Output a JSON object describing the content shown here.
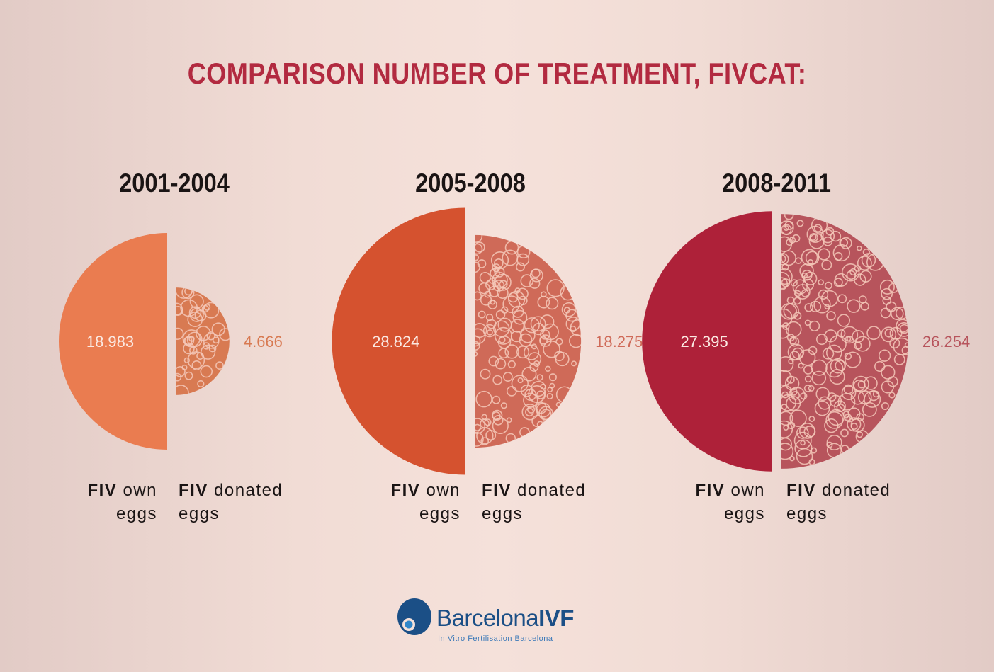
{
  "chart_data": {
    "type": "pie",
    "title": "COMPARISON NUMBER OF TREATMENT, FIVCAT:",
    "categories": [
      "FIV own eggs",
      "FIV donated eggs"
    ],
    "groups": [
      {
        "period": "2001-2004",
        "values": [
          18983,
          4666
        ],
        "value_labels": [
          "18.983",
          "4.666"
        ],
        "colors": [
          "#ea7c50",
          "#d87a52"
        ]
      },
      {
        "period": "2005-2008",
        "values": [
          28824,
          18275
        ],
        "value_labels": [
          "28.824",
          "18.275"
        ],
        "colors": [
          "#d5522f",
          "#cf6a58"
        ]
      },
      {
        "period": "2008-2011",
        "values": [
          27395,
          26254
        ],
        "value_labels": [
          "27.395",
          "26.254"
        ],
        "colors": [
          "#ae2139",
          "#b7545c"
        ]
      }
    ]
  },
  "legend": {
    "own_bold": "FIV",
    "own_rest1": "own",
    "own_rest2": "eggs",
    "don_bold": "FIV",
    "don_rest1": "donated",
    "don_rest2": "eggs"
  },
  "logo": {
    "name_part1": "Barcelona",
    "name_part2": "IVF",
    "tagline": "In Vitro Fertilisation Barcelona",
    "colors": {
      "primary": "#1b4f86",
      "secondary": "#3a78b8"
    }
  }
}
